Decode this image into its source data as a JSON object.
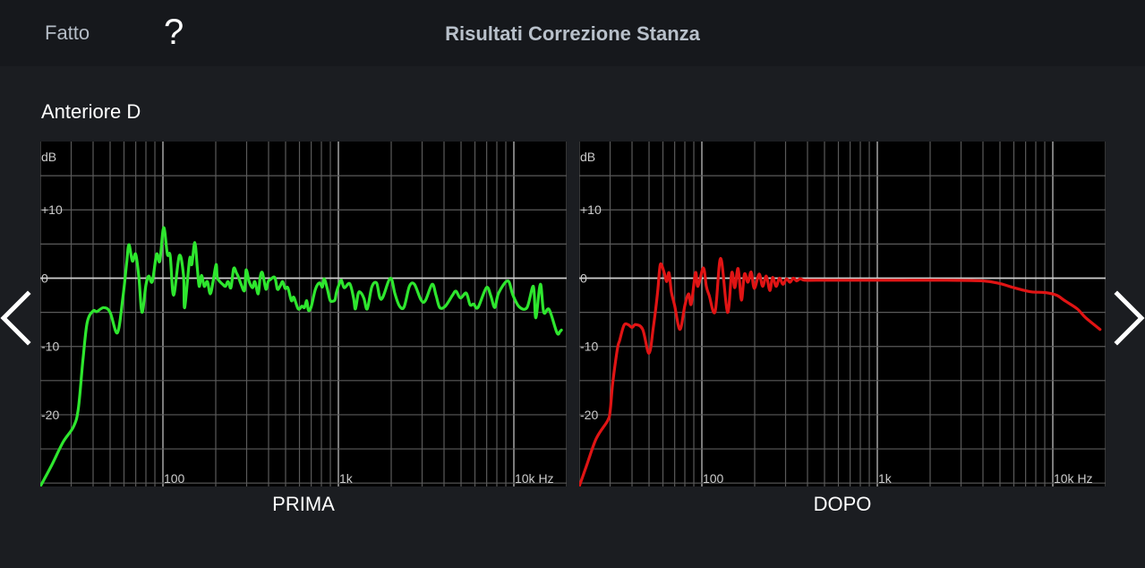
{
  "header": {
    "done_label": "Fatto",
    "help_label": "?",
    "title": "Risultati Correzione Stanza"
  },
  "channel_name": "Anteriore D",
  "nav": {
    "prev_icon": "chevron-left-icon",
    "next_icon": "chevron-right-icon"
  },
  "colors": {
    "before": "#2ee62e",
    "after": "#e01414",
    "grid": "#5a5a5a",
    "grid_major": "#9a9a9a",
    "zero_line": "#d0d0d0"
  },
  "chart_data": [
    {
      "type": "line",
      "title": "PRIMA",
      "xlabel": "Hz",
      "ylabel": "dB",
      "xscale": "log",
      "xlim": [
        20,
        20000
      ],
      "ylim": [
        -30.5,
        20
      ],
      "grid": true,
      "y_ticks": [
        {
          "v": 10,
          "label": "+10"
        },
        {
          "v": 0,
          "label": "0"
        },
        {
          "v": -10,
          "label": "-10"
        },
        {
          "v": -20,
          "label": "-20"
        }
      ],
      "x_ticks": [
        {
          "v": 100,
          "label": "100"
        },
        {
          "v": 1000,
          "label": "1k"
        },
        {
          "v": 10000,
          "label": "10k Hz"
        }
      ],
      "series": [
        {
          "name": "PRIMA",
          "color": "#2ee62e",
          "points": [
            [
              20,
              -30.5
            ],
            [
              23,
              -27.6
            ],
            [
              27,
              -24
            ],
            [
              31,
              -21.7
            ],
            [
              33,
              -19
            ],
            [
              35,
              -12
            ],
            [
              37,
              -6.5
            ],
            [
              40,
              -4.8
            ],
            [
              42,
              -4.9
            ],
            [
              46,
              -4.3
            ],
            [
              50,
              -5
            ],
            [
              55,
              -8
            ],
            [
              59,
              -3
            ],
            [
              62,
              2
            ],
            [
              64,
              4.9
            ],
            [
              67,
              2.5
            ],
            [
              70,
              3.5
            ],
            [
              73,
              0
            ],
            [
              76,
              -5
            ],
            [
              80,
              -1
            ],
            [
              83,
              0.3
            ],
            [
              87,
              -0.5
            ],
            [
              92,
              3.5
            ],
            [
              96,
              2.5
            ],
            [
              101,
              7.4
            ],
            [
              106,
              3.5
            ],
            [
              110,
              3.3
            ],
            [
              115,
              -2.5
            ],
            [
              124,
              3.3
            ],
            [
              131,
              0.4
            ],
            [
              133,
              -4.3
            ],
            [
              142,
              2.8
            ],
            [
              146,
              2
            ],
            [
              152,
              5.2
            ],
            [
              157,
              1.5
            ],
            [
              161,
              -1.2
            ],
            [
              166,
              0.4
            ],
            [
              172,
              -1.2
            ],
            [
              179,
              -0.5
            ],
            [
              186,
              -2.3
            ],
            [
              193,
              -0.5
            ],
            [
              201,
              2
            ],
            [
              204,
              0.1
            ],
            [
              211,
              -0.5
            ],
            [
              219,
              -0.9
            ],
            [
              227,
              -1.2
            ],
            [
              235,
              -0.5
            ],
            [
              244,
              -1.4
            ],
            [
              253,
              1.4
            ],
            [
              262,
              0.8
            ],
            [
              270,
              0.1
            ],
            [
              279,
              -0.9
            ],
            [
              292,
              -1.8
            ],
            [
              298,
              1.2
            ],
            [
              310,
              -0.5
            ],
            [
              324,
              -1.4
            ],
            [
              334,
              -0.5
            ],
            [
              349,
              -2.3
            ],
            [
              358,
              0.1
            ],
            [
              369,
              0.8
            ],
            [
              386,
              -1.6
            ],
            [
              398,
              -0.5
            ],
            [
              410,
              -0.2
            ],
            [
              434,
              0.1
            ],
            [
              449,
              -1.6
            ],
            [
              465,
              -1.2
            ],
            [
              481,
              -0.5
            ],
            [
              497,
              -1.5
            ],
            [
              515,
              -1.4
            ],
            [
              540,
              -3.3
            ],
            [
              557,
              -2.8
            ],
            [
              590,
              -4.5
            ],
            [
              620,
              -4.1
            ],
            [
              640,
              -4.3
            ],
            [
              660,
              -3.3
            ],
            [
              675,
              -4.7
            ],
            [
              700,
              -4.2
            ],
            [
              740,
              -1.6
            ],
            [
              780,
              -0.7
            ],
            [
              810,
              -1.3
            ],
            [
              830,
              -0.1
            ],
            [
              865,
              -1.6
            ],
            [
              895,
              -3.2
            ],
            [
              917,
              -3.4
            ],
            [
              955,
              -3.2
            ],
            [
              975,
              -2.1
            ],
            [
              1010,
              -0.9
            ],
            [
              1040,
              -0.3
            ],
            [
              1080,
              -1.4
            ],
            [
              1160,
              -0.8
            ],
            [
              1220,
              -2.9
            ],
            [
              1250,
              -4.5
            ],
            [
              1300,
              -2.2
            ],
            [
              1350,
              -2.2
            ],
            [
              1400,
              -3
            ],
            [
              1460,
              -4.5
            ],
            [
              1550,
              -1.3
            ],
            [
              1650,
              -0.7
            ],
            [
              1720,
              -2.8
            ],
            [
              1790,
              -2.8
            ],
            [
              1980,
              0
            ],
            [
              2100,
              -2.3
            ],
            [
              2230,
              -4.1
            ],
            [
              2370,
              -4.2
            ],
            [
              2540,
              -1.2
            ],
            [
              2710,
              -0.9
            ],
            [
              2960,
              -3.2
            ],
            [
              3130,
              -3.3
            ],
            [
              3420,
              -0.9
            ],
            [
              3600,
              -2.5
            ],
            [
              3780,
              -4.3
            ],
            [
              4070,
              -4.1
            ],
            [
              4470,
              -2.5
            ],
            [
              4680,
              -1.9
            ],
            [
              4960,
              -2.9
            ],
            [
              5350,
              -2.2
            ],
            [
              5630,
              -3.9
            ],
            [
              5900,
              -3.8
            ],
            [
              6240,
              -4.3
            ],
            [
              6970,
              -1.4
            ],
            [
              7370,
              -2.5
            ],
            [
              7780,
              -4.3
            ],
            [
              8180,
              -2.2
            ],
            [
              9240,
              -0.4
            ],
            [
              9880,
              -2.5
            ],
            [
              10730,
              -4.2
            ],
            [
              11880,
              -4.3
            ],
            [
              12920,
              -1.2
            ],
            [
              13330,
              -5.8
            ],
            [
              14160,
              -0.9
            ],
            [
              14800,
              -5
            ],
            [
              15890,
              -4.6
            ],
            [
              17610,
              -8
            ],
            [
              18340,
              -7.8
            ],
            [
              18650,
              -7.6
            ]
          ]
        }
      ]
    },
    {
      "type": "line",
      "title": "DOPO",
      "xlabel": "Hz",
      "ylabel": "dB",
      "xscale": "log",
      "xlim": [
        20,
        20000
      ],
      "ylim": [
        -30.5,
        20
      ],
      "grid": true,
      "y_ticks": [
        {
          "v": 10,
          "label": "+10"
        },
        {
          "v": 0,
          "label": "0"
        },
        {
          "v": -10,
          "label": "-10"
        },
        {
          "v": -20,
          "label": "-20"
        }
      ],
      "x_ticks": [
        {
          "v": 100,
          "label": "100"
        },
        {
          "v": 1000,
          "label": "1k"
        },
        {
          "v": 10000,
          "label": "10k Hz"
        }
      ],
      "series": [
        {
          "name": "DOPO",
          "color": "#e01414",
          "points": [
            [
              20,
              -30.5
            ],
            [
              22,
              -27.5
            ],
            [
              25,
              -23.5
            ],
            [
              29,
              -20.9
            ],
            [
              30,
              -19.5
            ],
            [
              31,
              -15.5
            ],
            [
              33,
              -10.4
            ],
            [
              34,
              -9.1
            ],
            [
              36,
              -6.9
            ],
            [
              38,
              -6.8
            ],
            [
              40,
              -7.2
            ],
            [
              42,
              -6.8
            ],
            [
              46,
              -7.5
            ],
            [
              50,
              -11
            ],
            [
              53,
              -7
            ],
            [
              56,
              -2
            ],
            [
              58,
              2
            ],
            [
              61,
              0.8
            ],
            [
              63,
              -0.5
            ],
            [
              65,
              0.8
            ],
            [
              67,
              -2
            ],
            [
              70,
              -4
            ],
            [
              75,
              -7.5
            ],
            [
              80,
              -4
            ],
            [
              84,
              -2.3
            ],
            [
              87,
              -3.8
            ],
            [
              92,
              0.8
            ],
            [
              95,
              -1.2
            ],
            [
              102,
              1.5
            ],
            [
              106,
              -1.2
            ],
            [
              110,
              -2.5
            ],
            [
              119,
              -4.9
            ],
            [
              128,
              2.9
            ],
            [
              140,
              -5
            ],
            [
              148,
              0.8
            ],
            [
              154,
              -1.4
            ],
            [
              161,
              1.4
            ],
            [
              168,
              -3.2
            ],
            [
              175,
              0.6
            ],
            [
              183,
              -0.6
            ],
            [
              191,
              0.9
            ],
            [
              199,
              -1.5
            ],
            [
              212,
              0.6
            ],
            [
              222,
              -1.2
            ],
            [
              233,
              0.3
            ],
            [
              244,
              -1.8
            ],
            [
              253,
              0.1
            ],
            [
              265,
              -1.2
            ],
            [
              277,
              0
            ],
            [
              290,
              -0.9
            ],
            [
              304,
              -0.1
            ],
            [
              318,
              -0.6
            ],
            [
              332,
              0
            ],
            [
              347,
              -0.4
            ],
            [
              363,
              -0.1
            ],
            [
              385,
              -0.3
            ],
            [
              450,
              -0.3
            ],
            [
              640,
              -0.3
            ],
            [
              900,
              -0.3
            ],
            [
              1400,
              -0.3
            ],
            [
              2500,
              -0.3
            ],
            [
              4000,
              -0.4
            ],
            [
              5000,
              -0.8
            ],
            [
              6000,
              -1.4
            ],
            [
              7500,
              -2
            ],
            [
              9000,
              -2.1
            ],
            [
              10500,
              -2.5
            ],
            [
              11700,
              -3.3
            ],
            [
              13800,
              -4.5
            ],
            [
              15400,
              -5.8
            ],
            [
              18600,
              -7.5
            ]
          ]
        }
      ]
    }
  ],
  "charts": {
    "before": {
      "label": "PRIMA",
      "db_label": "dB"
    },
    "after": {
      "label": "DOPO",
      "db_label": "dB"
    }
  }
}
